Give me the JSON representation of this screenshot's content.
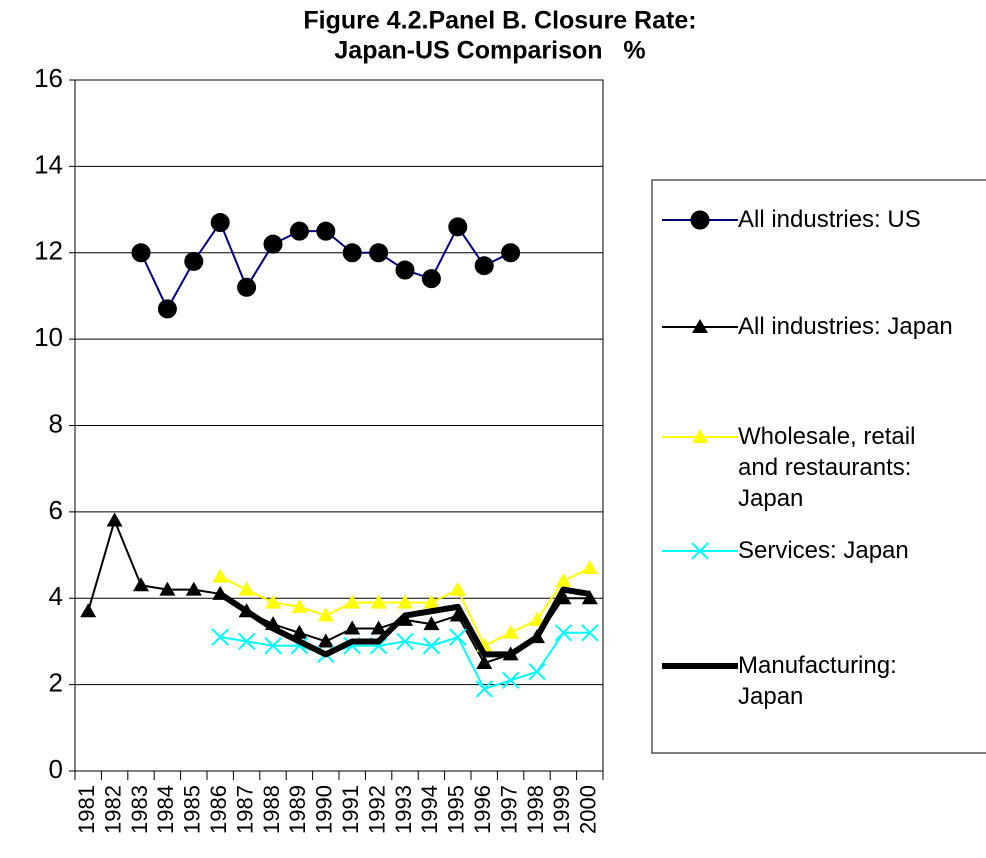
{
  "chart_data": {
    "type": "line",
    "title": [
      "Figure 4.2.Panel B. Closure Rate:",
      "Japan-US Comparison   %"
    ],
    "categories": [
      "1981",
      "1982",
      "1983",
      "1984",
      "1985",
      "1986",
      "1987",
      "1988",
      "1989",
      "1990",
      "1991",
      "1992",
      "1993",
      "1994",
      "1995",
      "1996",
      "1997",
      "1998",
      "1999",
      "2000"
    ],
    "ylim": [
      0,
      16
    ],
    "yticks": [
      0,
      2,
      4,
      6,
      8,
      10,
      12,
      14,
      16
    ],
    "grid": true,
    "legend": "right",
    "series": [
      {
        "name": "All industries: US",
        "color": "#000080",
        "marker": "circle",
        "marker_color": "#000000",
        "values": [
          null,
          null,
          12.0,
          10.7,
          11.8,
          12.7,
          11.2,
          12.2,
          12.5,
          12.5,
          12.0,
          12.0,
          11.6,
          11.4,
          12.6,
          11.7,
          12.0,
          null,
          null,
          null
        ]
      },
      {
        "name": "All industries: Japan",
        "color": "#000000",
        "marker": "triangle",
        "marker_color": "#000000",
        "values": [
          3.7,
          5.8,
          4.3,
          4.2,
          4.2,
          4.1,
          3.7,
          3.4,
          3.2,
          3.0,
          3.3,
          3.3,
          3.5,
          3.4,
          3.6,
          2.5,
          2.7,
          3.1,
          4.0,
          4.0
        ]
      },
      {
        "name": "Wholesale, retail and restaurants: Japan",
        "color": "#FFFF00",
        "marker": "triangle",
        "marker_color": "#FFFF00",
        "values": [
          null,
          null,
          null,
          null,
          null,
          4.5,
          4.2,
          3.9,
          3.8,
          3.6,
          3.9,
          3.9,
          3.9,
          3.9,
          4.2,
          2.9,
          3.2,
          3.5,
          4.4,
          4.7
        ]
      },
      {
        "name": "Services: Japan",
        "color": "#00FFFF",
        "marker": "x",
        "marker_color": "#00FFFF",
        "values": [
          null,
          null,
          null,
          null,
          null,
          3.1,
          3.0,
          2.9,
          2.9,
          2.7,
          2.9,
          2.9,
          3.0,
          2.9,
          3.1,
          1.9,
          2.1,
          2.3,
          3.2,
          3.2
        ]
      },
      {
        "name": "Manufacturing: Japan",
        "color": "#000000",
        "marker": "none",
        "marker_color": "#000000",
        "line_width": 6,
        "values": [
          null,
          null,
          null,
          null,
          null,
          4.1,
          3.7,
          3.3,
          3.0,
          2.7,
          3.0,
          3.0,
          3.6,
          3.7,
          3.8,
          2.7,
          2.7,
          3.1,
          4.2,
          4.1
        ]
      }
    ]
  }
}
